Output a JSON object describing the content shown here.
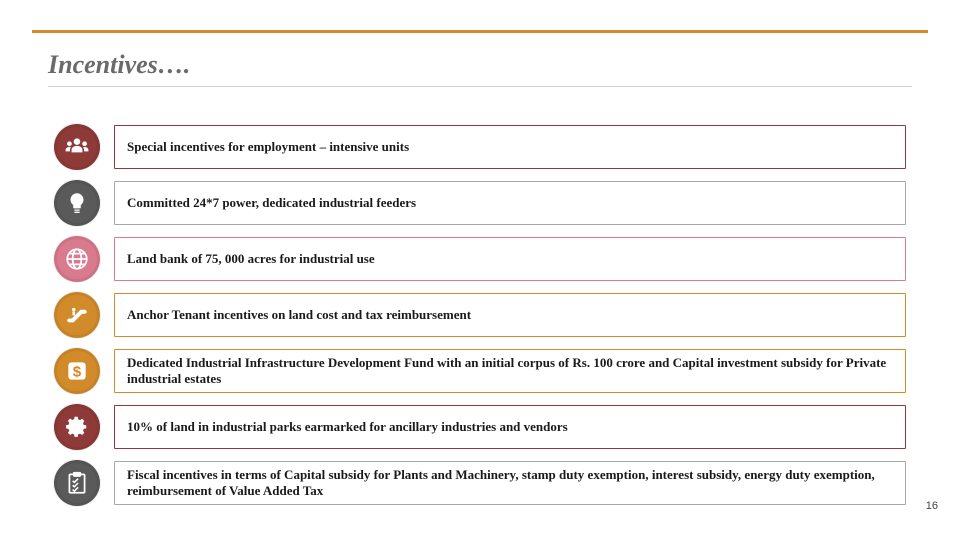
{
  "title": "Incentives….",
  "page_number": "16",
  "accent_color": "#d28b2b",
  "title_color": "#6a6a6a",
  "items": [
    {
      "text": "Special incentives for employment – intensive units",
      "icon": "people",
      "disc_color": "#8e3a39",
      "border_color": "#8e3a39"
    },
    {
      "text": "Committed 24*7 power, dedicated industrial feeders",
      "icon": "bulb",
      "disc_color": "#5a5a5a",
      "border_color": "#a8a8a8"
    },
    {
      "text": "Land bank of 75, 000 acres for industrial use",
      "icon": "globe",
      "disc_color": "#d97a8e",
      "border_color": "#d97a8e"
    },
    {
      "text": "Anchor Tenant incentives on land cost and tax reimbursement",
      "icon": "escalator",
      "disc_color": "#d28b2b",
      "border_color": "#d28b2b"
    },
    {
      "text": "Dedicated Industrial Infrastructure Development Fund with an initial corpus of Rs. 100 crore and Capital investment subsidy for Private industrial estates",
      "icon": "dollar",
      "disc_color": "#d28b2b",
      "border_color": "#d28b2b"
    },
    {
      "text": "10% of land in industrial parks earmarked for ancillary industries and vendors",
      "icon": "gear",
      "disc_color": "#8e3a39",
      "border_color": "#8e3a39"
    },
    {
      "text": "Fiscal incentives in terms of Capital subsidy for Plants and Machinery, stamp duty exemption, interest subsidy, energy duty exemption, reimbursement of Value Added Tax",
      "icon": "checklist",
      "disc_color": "#5a5a5a",
      "border_color": "#a8a8a8"
    }
  ]
}
